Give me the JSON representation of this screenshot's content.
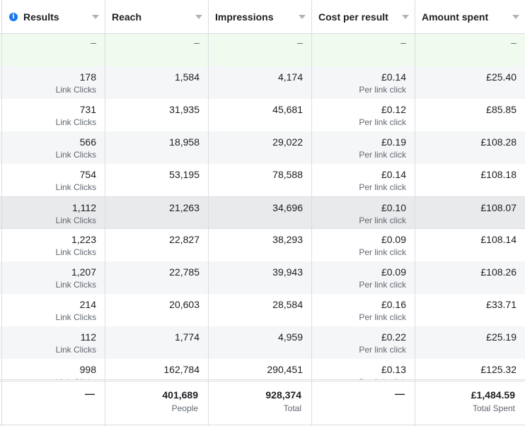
{
  "columns": [
    {
      "key": "results",
      "label": "Results",
      "has_info": true
    },
    {
      "key": "reach",
      "label": "Reach"
    },
    {
      "key": "impressions",
      "label": "Impressions"
    },
    {
      "key": "cost_per_result",
      "label": "Cost per result"
    },
    {
      "key": "amount_spent",
      "label": "Amount spent"
    }
  ],
  "placeholder_row": {
    "results": "–",
    "reach": "–",
    "impressions": "–",
    "cost_per_result": "–",
    "amount_spent": "–"
  },
  "rows": [
    {
      "results": "178",
      "results_sub": "Link Clicks",
      "reach": "1,584",
      "impressions": "4,174",
      "cost": "£0.14",
      "cost_sub": "Per link click",
      "spent": "£25.40"
    },
    {
      "results": "731",
      "results_sub": "Link Clicks",
      "reach": "31,935",
      "impressions": "45,681",
      "cost": "£0.12",
      "cost_sub": "Per link click",
      "spent": "£85.85"
    },
    {
      "results": "566",
      "results_sub": "Link Clicks",
      "reach": "18,958",
      "impressions": "29,022",
      "cost": "£0.19",
      "cost_sub": "Per link click",
      "spent": "£108.28"
    },
    {
      "results": "754",
      "results_sub": "Link Clicks",
      "reach": "53,195",
      "impressions": "78,588",
      "cost": "£0.14",
      "cost_sub": "Per link click",
      "spent": "£108.18"
    },
    {
      "results": "1,112",
      "results_sub": "Link Clicks",
      "reach": "21,263",
      "impressions": "34,696",
      "cost": "£0.10",
      "cost_sub": "Per link click",
      "spent": "£108.07"
    },
    {
      "results": "1,223",
      "results_sub": "Link Clicks",
      "reach": "22,827",
      "impressions": "38,293",
      "cost": "£0.09",
      "cost_sub": "Per link click",
      "spent": "£108.14"
    },
    {
      "results": "1,207",
      "results_sub": "Link Clicks",
      "reach": "22,785",
      "impressions": "39,943",
      "cost": "£0.09",
      "cost_sub": "Per link click",
      "spent": "£108.26"
    },
    {
      "results": "214",
      "results_sub": "Link Clicks",
      "reach": "20,603",
      "impressions": "28,584",
      "cost": "£0.16",
      "cost_sub": "Per link click",
      "spent": "£33.71"
    },
    {
      "results": "112",
      "results_sub": "Link Clicks",
      "reach": "1,774",
      "impressions": "4,959",
      "cost": "£0.22",
      "cost_sub": "Per link click",
      "spent": "£25.19"
    },
    {
      "results": "998",
      "results_sub": "Link Clicks",
      "reach": "162,784",
      "impressions": "290,451",
      "cost": "£0.13",
      "cost_sub": "Per link click",
      "spent": "£125.32"
    }
  ],
  "totals": {
    "results": "—",
    "reach": "401,689",
    "reach_sub": "People",
    "impressions": "928,374",
    "impressions_sub": "Total",
    "cost_per_result": "—",
    "amount_spent": "£1,484.59",
    "amount_spent_sub": "Total Spent"
  },
  "colors": {
    "accent": "#1877f2",
    "placeholder_bg": "#f1faee",
    "row_alt": "#f5f6f7",
    "row_hover": "#e9eaeb",
    "border": "#dadde1"
  }
}
